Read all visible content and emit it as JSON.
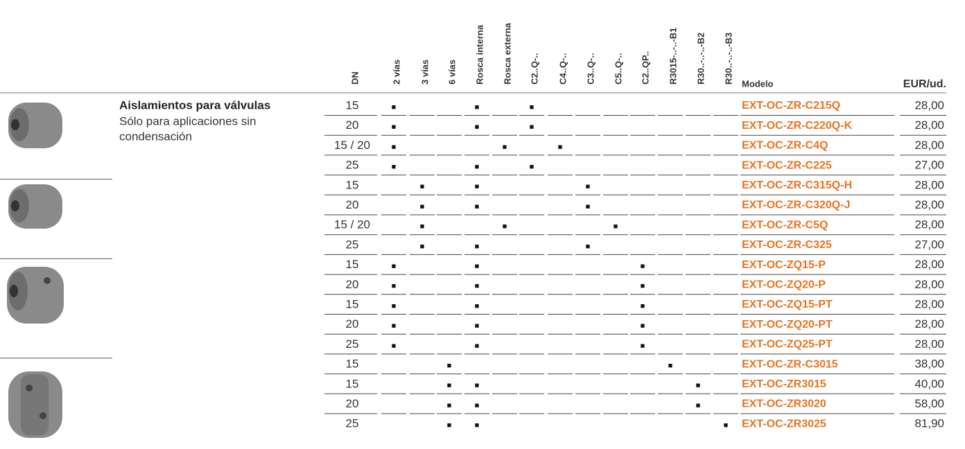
{
  "header": {
    "columns": [
      "DN",
      "2 vías",
      "3 vías",
      "6 vías",
      "Rosca interna",
      "Rosca externa",
      "C2..Q-..",
      "C4..Q-..",
      "C3..Q-..",
      "C5..Q-..",
      "C2..QP..",
      "R3015-..-..-B1",
      "R30..-..-..-B2",
      "R30..-..-..-B3"
    ],
    "model": "Modelo",
    "price": "EUR/ud."
  },
  "product": {
    "title": "Aislamientos para válvulas",
    "description": [
      "Sólo para aplicaciones sin",
      "condensación"
    ]
  },
  "table": {
    "rows": [
      {
        "dn": "15",
        "cells": [
          "■",
          null,
          null,
          "■",
          null,
          "■",
          null,
          null,
          null,
          null,
          null,
          null,
          null
        ],
        "model": "EXT-OC-ZR-C215Q",
        "price": "28,00"
      },
      {
        "dn": "20",
        "cells": [
          "■",
          null,
          null,
          "■",
          null,
          "■",
          null,
          null,
          null,
          null,
          null,
          null,
          null
        ],
        "model": "EXT-OC-ZR-C220Q-K",
        "price": "28,00"
      },
      {
        "dn": "15 / 20",
        "cells": [
          "■",
          null,
          null,
          null,
          "■",
          null,
          "■",
          null,
          null,
          null,
          null,
          null,
          null
        ],
        "model": "EXT-OC-ZR-C4Q",
        "price": "28,00"
      },
      {
        "dn": "25",
        "cells": [
          "■",
          null,
          null,
          "■",
          null,
          "■",
          null,
          null,
          null,
          null,
          null,
          null,
          null
        ],
        "model": "EXT-OC-ZR-C225",
        "price": "27,00"
      },
      {
        "dn": "15",
        "cells": [
          null,
          "■",
          null,
          "■",
          null,
          null,
          null,
          "■",
          null,
          null,
          null,
          null,
          null
        ],
        "model": "EXT-OC-ZR-C315Q-H",
        "price": "28,00"
      },
      {
        "dn": "20",
        "cells": [
          null,
          "■",
          null,
          "■",
          null,
          null,
          null,
          "■",
          null,
          null,
          null,
          null,
          null
        ],
        "model": "EXT-OC-ZR-C320Q-J",
        "price": "28,00"
      },
      {
        "dn": "15 / 20",
        "cells": [
          null,
          "■",
          null,
          null,
          "■",
          null,
          null,
          null,
          "■",
          null,
          null,
          null,
          null
        ],
        "model": "EXT-OC-ZR-C5Q",
        "price": "28,00"
      },
      {
        "dn": "25",
        "cells": [
          null,
          "■",
          null,
          "■",
          null,
          null,
          null,
          "■",
          null,
          null,
          null,
          null,
          null
        ],
        "model": "EXT-OC-ZR-C325",
        "price": "27,00"
      },
      {
        "dn": "15",
        "cells": [
          "■",
          null,
          null,
          "■",
          null,
          null,
          null,
          null,
          null,
          "■",
          null,
          null,
          null
        ],
        "model": "EXT-OC-ZQ15-P",
        "price": "28,00"
      },
      {
        "dn": "20",
        "cells": [
          "■",
          null,
          null,
          "■",
          null,
          null,
          null,
          null,
          null,
          "■",
          null,
          null,
          null
        ],
        "model": "EXT-OC-ZQ20-P",
        "price": "28,00"
      },
      {
        "dn": "15",
        "cells": [
          "■",
          null,
          null,
          "■",
          null,
          null,
          null,
          null,
          null,
          "■",
          null,
          null,
          null
        ],
        "model": "EXT-OC-ZQ15-PT",
        "price": "28,00"
      },
      {
        "dn": "20",
        "cells": [
          "■",
          null,
          null,
          "■",
          null,
          null,
          null,
          null,
          null,
          "■",
          null,
          null,
          null
        ],
        "model": "EXT-OC-ZQ20-PT",
        "price": "28,00"
      },
      {
        "dn": "25",
        "cells": [
          "■",
          null,
          null,
          "■",
          null,
          null,
          null,
          null,
          null,
          "■",
          null,
          null,
          null
        ],
        "model": "EXT-OC-ZQ25-PT",
        "price": "28,00"
      },
      {
        "dn": "15",
        "cells": [
          null,
          null,
          "■",
          null,
          null,
          null,
          null,
          null,
          null,
          null,
          "■",
          null,
          null
        ],
        "model": "EXT-OC-ZR-C3015",
        "price": "38,00"
      },
      {
        "dn": "15",
        "cells": [
          null,
          null,
          "■",
          "■",
          null,
          null,
          null,
          null,
          null,
          null,
          null,
          "■",
          null
        ],
        "model": "EXT-OC-ZR3015",
        "price": "40,00"
      },
      {
        "dn": "20",
        "cells": [
          null,
          null,
          "■",
          "■",
          null,
          null,
          null,
          null,
          null,
          null,
          null,
          "■",
          null
        ],
        "model": "EXT-OC-ZR3020",
        "price": "58,00"
      },
      {
        "dn": "25",
        "cells": [
          null,
          null,
          "■",
          "■",
          null,
          null,
          null,
          null,
          null,
          null,
          null,
          null,
          "■"
        ],
        "model": "EXT-OC-ZR3025",
        "price": "81,90"
      }
    ]
  }
}
